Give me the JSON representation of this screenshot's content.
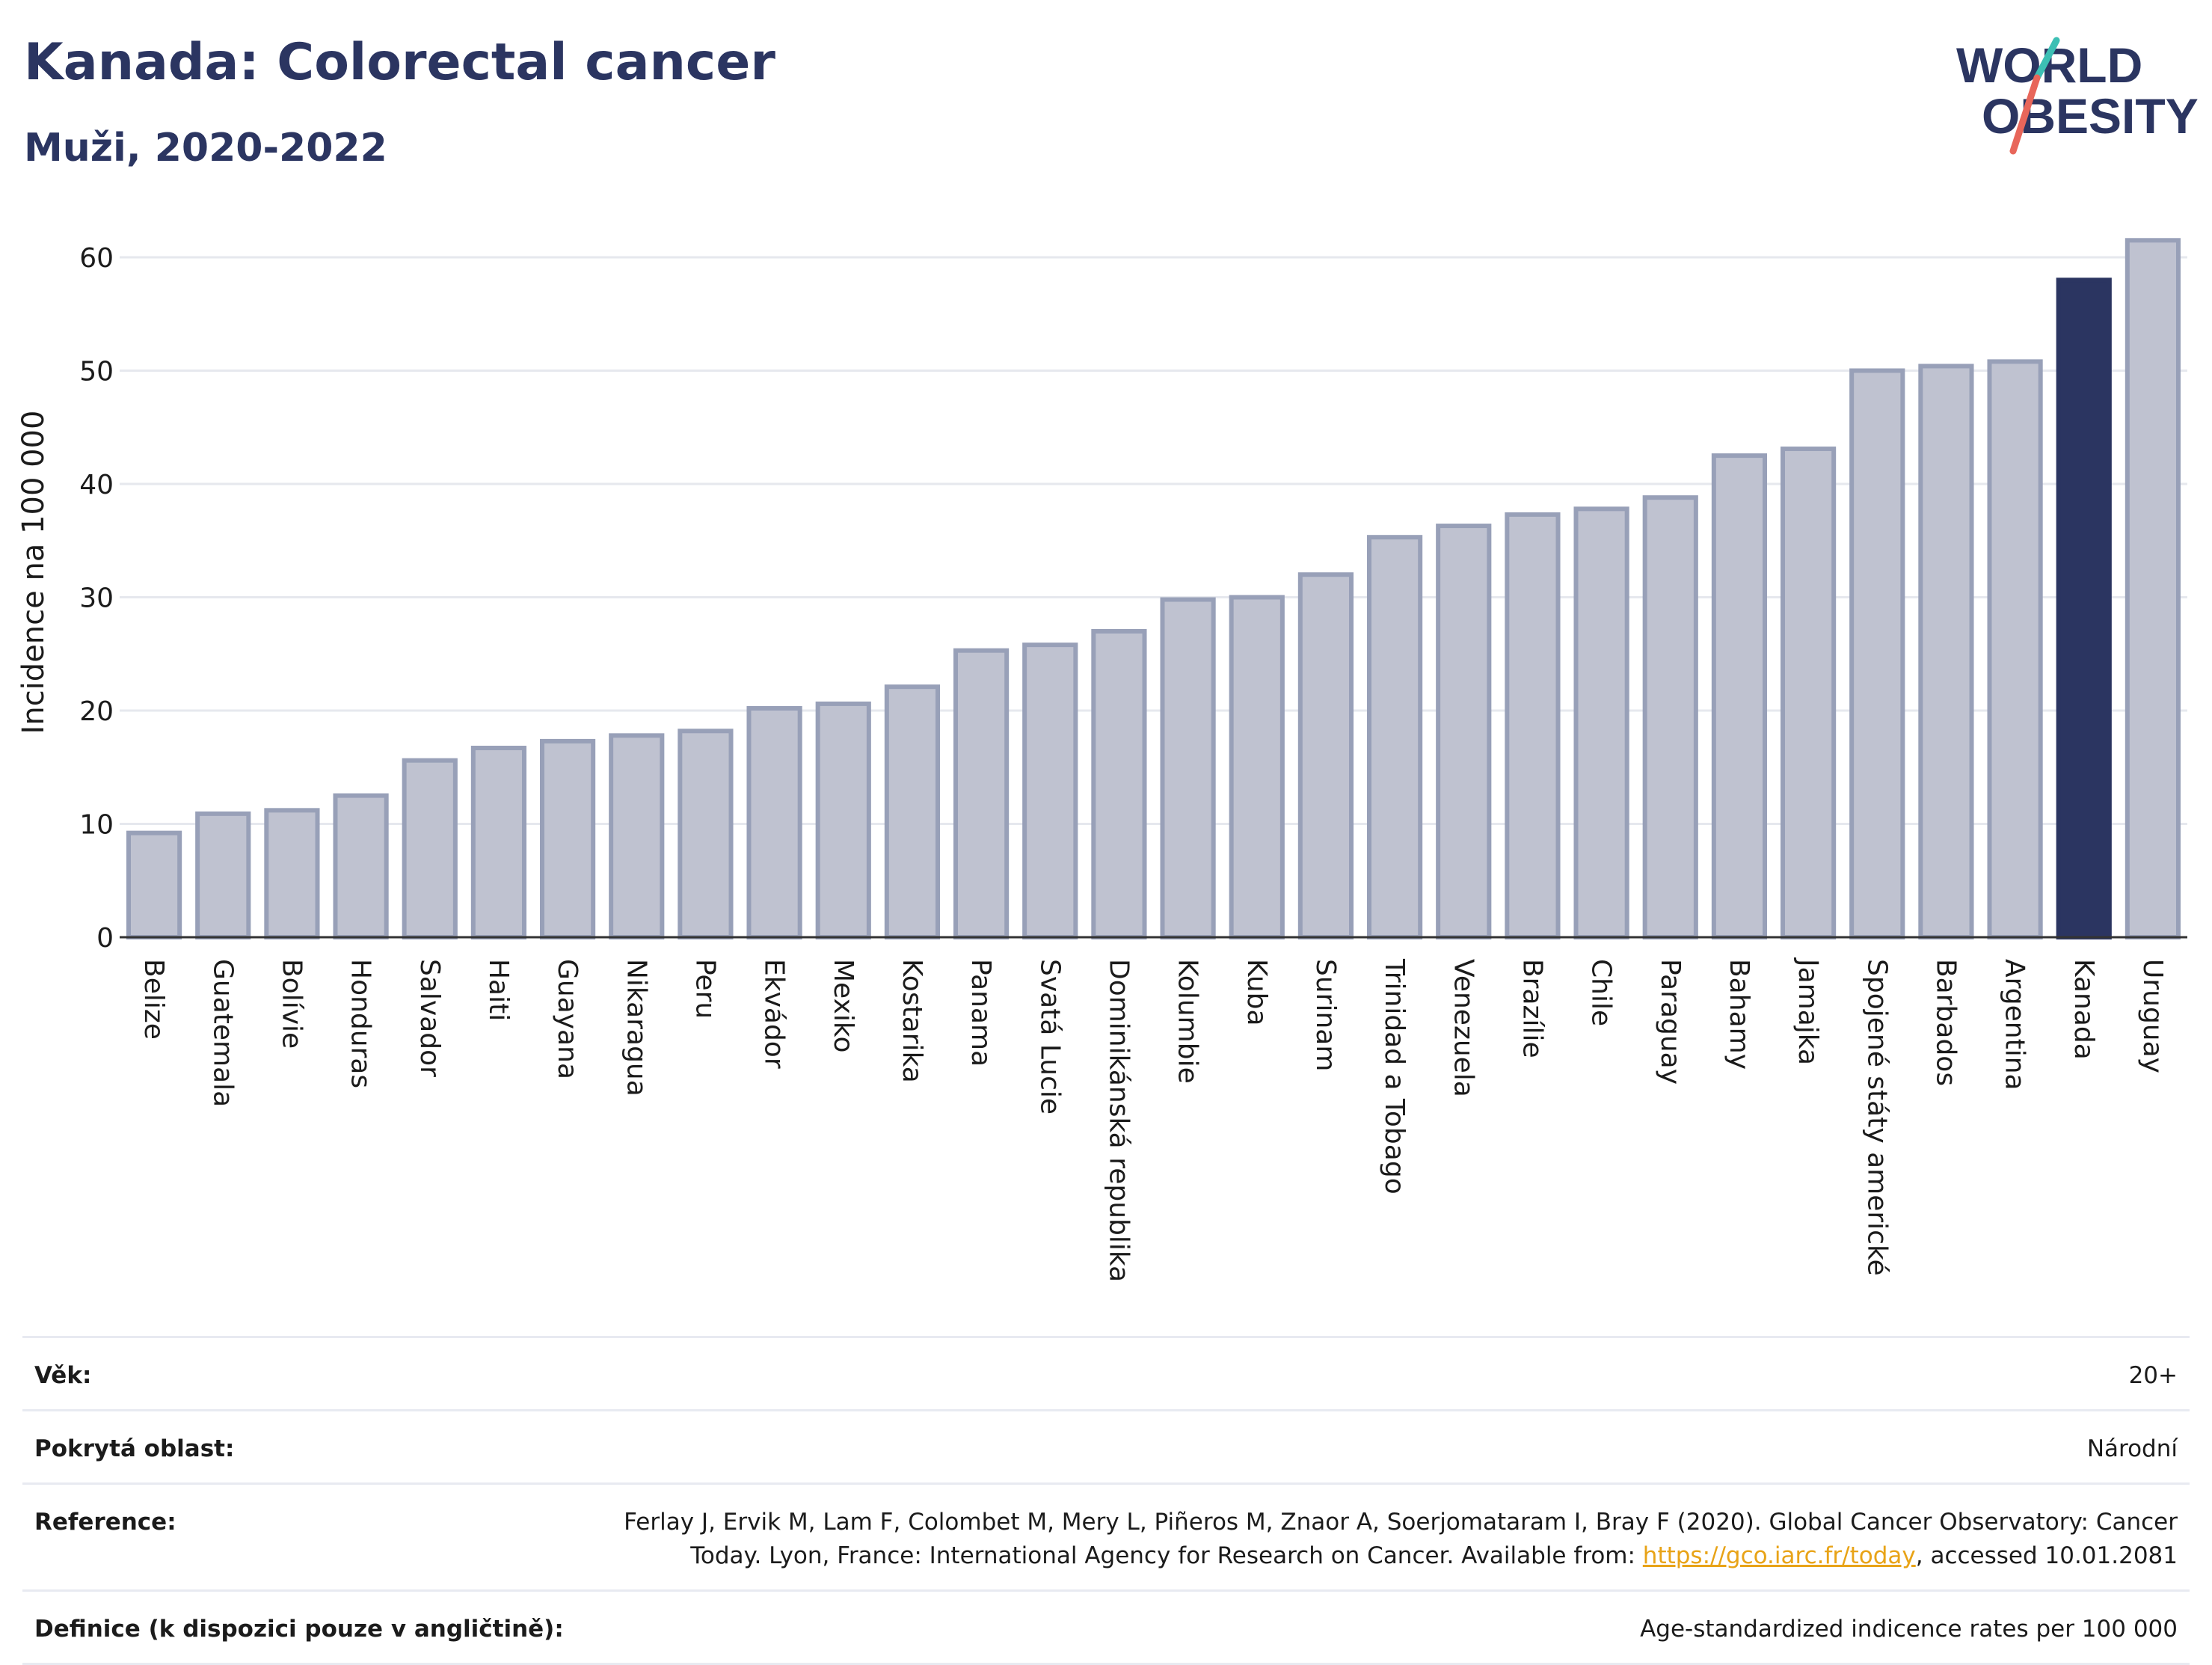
{
  "header": {
    "title": "Kanada: Colorectal cancer",
    "subtitle": "Muži, 2020-2022",
    "logo_line1": "WORLD",
    "logo_line2": "OBESITY"
  },
  "chart_data": {
    "type": "bar",
    "title": "Kanada: Colorectal cancer",
    "subtitle": "Muži, 2020-2022",
    "ylabel": "Incidence na 100 000",
    "xlabel": "",
    "ylim": [
      0,
      65
    ],
    "yticks": [
      0,
      10,
      20,
      30,
      40,
      50,
      60
    ],
    "grid": true,
    "highlight": "Kanada",
    "colors": {
      "bar": "#bfc2d0",
      "bar_edge": "#98a0b8",
      "highlight": "#2b3561"
    },
    "categories": [
      "Belize",
      "Guatemala",
      "Bolívie",
      "Honduras",
      "Salvador",
      "Haiti",
      "Guayana",
      "Nikaragua",
      "Peru",
      "Ekvádor",
      "Mexiko",
      "Kostarika",
      "Panama",
      "Svatá Lucie",
      "Dominikánská republika",
      "Kolumbie",
      "Kuba",
      "Surinam",
      "Trinidad a Tobago",
      "Venezuela",
      "Brazílie",
      "Chile",
      "Paraguay",
      "Bahamy",
      "Jamajka",
      "Spojené státy americké",
      "Barbados",
      "Argentina",
      "Kanada",
      "Uruguay"
    ],
    "values": [
      9.2,
      10.9,
      11.2,
      12.5,
      15.6,
      16.7,
      17.3,
      17.8,
      18.2,
      20.2,
      20.6,
      22.1,
      25.3,
      25.8,
      27.0,
      29.8,
      30.0,
      32.0,
      35.3,
      36.3,
      37.3,
      37.8,
      38.8,
      42.5,
      43.1,
      50.0,
      50.4,
      50.8,
      58.0,
      61.5
    ]
  },
  "meta": {
    "rows": [
      {
        "key": "Věk:",
        "value": "20+"
      },
      {
        "key": "Pokrytá oblast:",
        "value": "Národní"
      },
      {
        "key": "Reference:",
        "value_pre": "Ferlay J, Ervik M, Lam F, Colombet M, Mery L, Piñeros M, Znaor A, Soerjomataram I, Bray F (2020). Global Cancer Observatory: Cancer Today. Lyon, France: International Agency for Research on Cancer. Available from: ",
        "link": "https://gco.iarc.fr/today",
        "value_post": ", accessed 10.01.2081"
      },
      {
        "key": "Definice (k dispozici pouze v angličtině):",
        "value": "Age-standardized indicence rates per 100 000"
      }
    ]
  }
}
